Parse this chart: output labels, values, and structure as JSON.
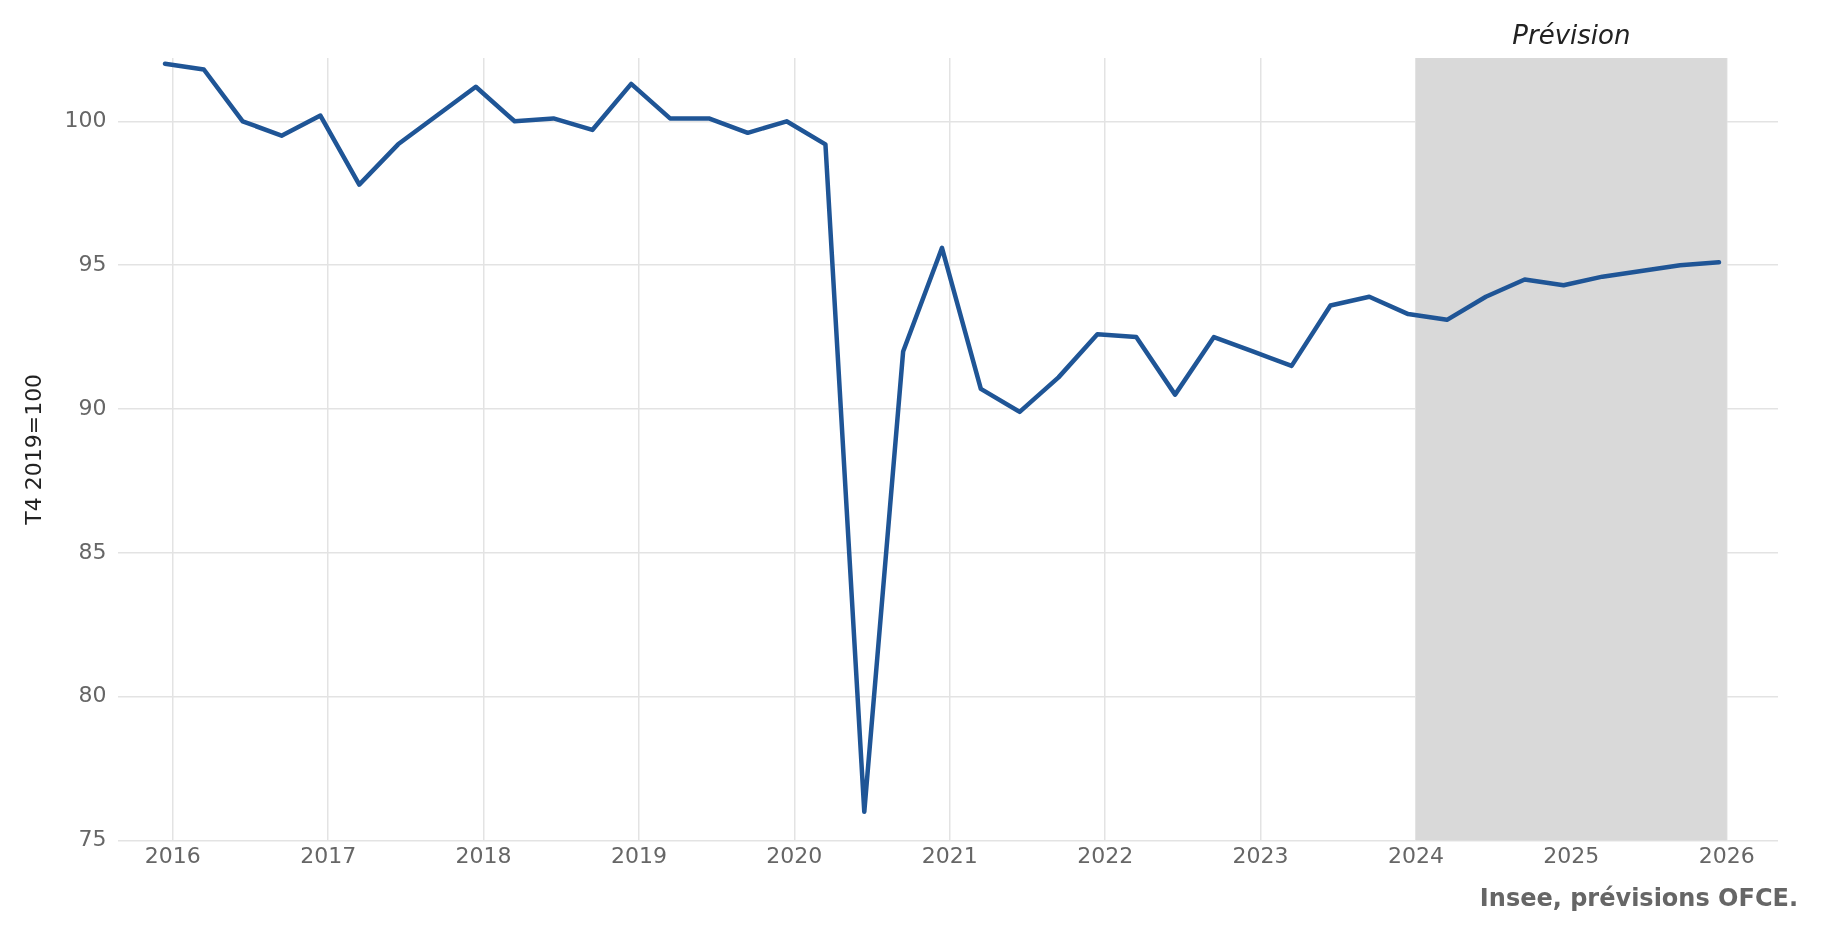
{
  "chart_data": {
    "type": "line",
    "ylabel": "T4 2019=100",
    "x": [
      2015.95,
      2016.2,
      2016.45,
      2016.7,
      2016.95,
      2017.2,
      2017.45,
      2017.7,
      2017.95,
      2018.2,
      2018.45,
      2018.7,
      2018.95,
      2019.2,
      2019.45,
      2019.7,
      2019.95,
      2020.2,
      2020.45,
      2020.7,
      2020.95,
      2021.2,
      2021.45,
      2021.7,
      2021.95,
      2022.2,
      2022.45,
      2022.7,
      2022.95,
      2023.2,
      2023.45,
      2023.7,
      2023.95,
      2024.2,
      2024.45,
      2024.7,
      2024.95,
      2025.2,
      2025.45,
      2025.7,
      2025.95
    ],
    "series": [
      {
        "color": "#1f5596",
        "values": [
          102.0,
          101.8,
          100.0,
          99.5,
          100.2,
          97.8,
          99.2,
          100.2,
          101.2,
          100.0,
          100.1,
          99.7,
          101.3,
          100.1,
          100.1,
          99.6,
          100.0,
          99.2,
          76.0,
          92.0,
          95.6,
          90.7,
          89.9,
          91.1,
          92.6,
          92.5,
          90.5,
          92.5,
          92.0,
          91.5,
          93.6,
          93.9,
          93.3,
          93.1,
          93.9,
          94.5,
          94.3,
          94.6,
          94.8,
          95.0,
          95.1
        ]
      }
    ],
    "xlim": [
      2015.65,
      2026.33
    ],
    "xticks": [
      2016,
      2017,
      2018,
      2019,
      2020,
      2021,
      2022,
      2023,
      2024,
      2025,
      2026
    ],
    "ylim": [
      75,
      102.2
    ],
    "yticks": [
      75,
      80,
      85,
      90,
      95,
      100
    ],
    "grid": true,
    "marker": "none",
    "line_style": "solid",
    "legend": false,
    "bands": [
      {
        "axis": "x",
        "from": 2024,
        "to": 2026,
        "label": "Prévision",
        "color": "#d9d9d9"
      }
    ],
    "annotations": [
      "Insee, prévisions OFCE."
    ]
  }
}
